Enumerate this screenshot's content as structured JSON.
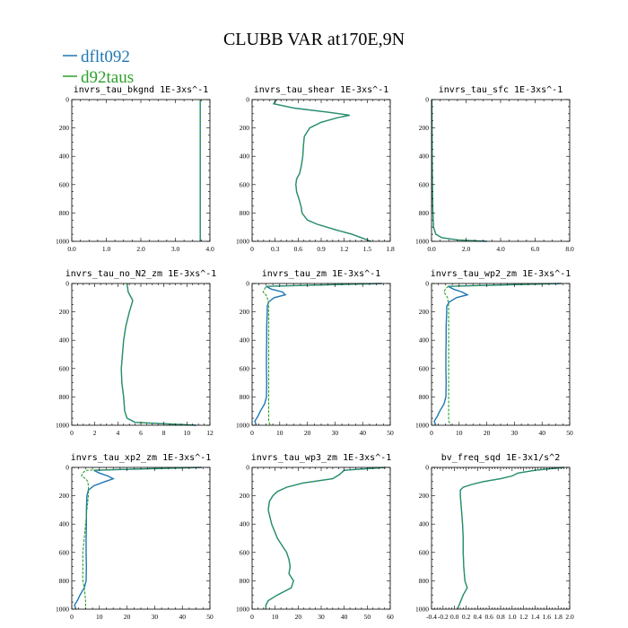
{
  "figure": {
    "title": "CLUBB VAR at170E,9N",
    "legend": [
      {
        "label": "dflt092",
        "color": "#1f77b4"
      },
      {
        "label": "d92taus",
        "color": "#2ca02c"
      }
    ]
  },
  "chart_data": [
    {
      "type": "line",
      "title": "invrs_tau_bkgnd   1E-3xs^-1",
      "xlim": [
        0,
        4
      ],
      "ylim": [
        1000,
        0
      ],
      "xticks": [
        "0.0",
        "1.0",
        "2.0",
        "3.0",
        "4.0"
      ],
      "xtick_values": [
        0,
        1,
        2,
        3,
        4
      ],
      "yticks": [
        "0",
        "200",
        "400",
        "600",
        "800",
        "1000"
      ],
      "ytick_values": [
        0,
        200,
        400,
        600,
        800,
        1000
      ],
      "series": [
        {
          "name": "dflt092",
          "y": [
            0,
            1000
          ],
          "x": [
            3.72,
            3.72
          ]
        },
        {
          "name": "d92taus",
          "y": [
            0,
            1000
          ],
          "x": [
            3.72,
            3.72
          ]
        }
      ]
    },
    {
      "type": "line",
      "title": "invrs_tau_shear   1E-3xs^-1",
      "xlim": [
        0,
        1.8
      ],
      "ylim": [
        1000,
        0
      ],
      "xticks": [
        "0",
        "0.3",
        "0.6",
        "0.9",
        "1.2",
        "1.5",
        "1.8"
      ],
      "xtick_values": [
        0,
        0.3,
        0.6,
        0.9,
        1.2,
        1.5,
        1.8
      ],
      "yticks": [
        "0",
        "200",
        "400",
        "600",
        "800",
        "1000"
      ],
      "ytick_values": [
        0,
        200,
        400,
        600,
        800,
        1000
      ],
      "series": [
        {
          "name": "dflt092",
          "y": [
            0,
            30,
            60,
            90,
            110,
            130,
            160,
            200,
            260,
            320,
            400,
            470,
            520,
            560,
            600,
            650,
            700,
            760,
            800,
            850,
            880,
            920,
            950,
            980,
            1000
          ],
          "x": [
            0.32,
            0.28,
            0.55,
            1.0,
            1.27,
            1.1,
            0.9,
            0.75,
            0.68,
            0.67,
            0.66,
            0.64,
            0.62,
            0.58,
            0.57,
            0.58,
            0.61,
            0.64,
            0.65,
            0.72,
            0.85,
            1.1,
            1.3,
            1.45,
            1.55
          ]
        },
        {
          "name": "d92taus",
          "y": [
            0,
            30,
            60,
            90,
            110,
            130,
            160,
            200,
            260,
            320,
            400,
            470,
            520,
            560,
            600,
            650,
            700,
            760,
            800,
            850,
            880,
            920,
            950,
            980,
            1000
          ],
          "x": [
            0.32,
            0.28,
            0.55,
            1.0,
            1.27,
            1.1,
            0.9,
            0.75,
            0.68,
            0.67,
            0.66,
            0.64,
            0.62,
            0.58,
            0.57,
            0.58,
            0.61,
            0.64,
            0.65,
            0.72,
            0.85,
            1.1,
            1.3,
            1.45,
            1.55
          ]
        }
      ]
    },
    {
      "type": "line",
      "title": "invrs_tau_sfc   1E-3xs^-1",
      "xlim": [
        0,
        8
      ],
      "ylim": [
        1000,
        0
      ],
      "xticks": [
        "0.0",
        "2.0",
        "4.0",
        "6.0",
        "8.0"
      ],
      "xtick_values": [
        0,
        2,
        4,
        6,
        8
      ],
      "yticks": [
        "0",
        "200",
        "400",
        "600",
        "800",
        "1000"
      ],
      "ytick_values": [
        0,
        200,
        400,
        600,
        800,
        1000
      ],
      "series": [
        {
          "name": "dflt092",
          "y": [
            0,
            300,
            600,
            800,
            900,
            950,
            975,
            990,
            1000
          ],
          "x": [
            0.02,
            0.03,
            0.05,
            0.08,
            0.12,
            0.25,
            0.6,
            1.5,
            3.2
          ]
        },
        {
          "name": "d92taus",
          "y": [
            0,
            300,
            600,
            800,
            900,
            950,
            975,
            990,
            1000
          ],
          "x": [
            0.02,
            0.03,
            0.05,
            0.08,
            0.12,
            0.25,
            0.6,
            1.5,
            3.2
          ]
        }
      ]
    },
    {
      "type": "line",
      "title": "invrs_tau_no_N2_zm   1E-3xs^-1",
      "xlim": [
        0,
        12
      ],
      "ylim": [
        1000,
        0
      ],
      "xticks": [
        "0",
        "2",
        "4",
        "6",
        "8",
        "10",
        "12"
      ],
      "xtick_values": [
        0,
        2,
        4,
        6,
        8,
        10,
        12
      ],
      "yticks": [
        "0",
        "200",
        "400",
        "600",
        "800",
        "1000"
      ],
      "ytick_values": [
        0,
        200,
        400,
        600,
        800,
        1000
      ],
      "series": [
        {
          "name": "dflt092",
          "y": [
            0,
            60,
            120,
            200,
            300,
            400,
            500,
            600,
            700,
            800,
            900,
            950,
            980,
            1000
          ],
          "x": [
            4.8,
            4.9,
            5.3,
            5.0,
            4.7,
            4.5,
            4.4,
            4.3,
            4.35,
            4.5,
            4.6,
            4.8,
            5.5,
            10.8
          ]
        },
        {
          "name": "d92taus",
          "y": [
            0,
            60,
            120,
            200,
            300,
            400,
            500,
            600,
            700,
            800,
            900,
            950,
            980,
            1000
          ],
          "x": [
            4.8,
            4.9,
            5.3,
            5.0,
            4.7,
            4.5,
            4.4,
            4.3,
            4.35,
            4.5,
            4.6,
            4.8,
            5.5,
            10.8
          ]
        }
      ]
    },
    {
      "type": "line",
      "title": "invrs_tau_zm   1E-3xs^-1",
      "xlim": [
        0,
        50
      ],
      "ylim": [
        1000,
        0
      ],
      "xticks": [
        "0",
        "10",
        "20",
        "30",
        "40",
        "50"
      ],
      "xtick_values": [
        0,
        10,
        20,
        30,
        40,
        50
      ],
      "yticks": [
        "0",
        "200",
        "400",
        "600",
        "800",
        "1000"
      ],
      "ytick_values": [
        0,
        200,
        400,
        600,
        800,
        1000
      ],
      "series": [
        {
          "name": "dflt092",
          "y": [
            0,
            20,
            40,
            60,
            80,
            100,
            130,
            160,
            200,
            300,
            400,
            500,
            600,
            700,
            800,
            850,
            900,
            940,
            970,
            1000
          ],
          "x": [
            47,
            5,
            7,
            11,
            12,
            8,
            6,
            5.5,
            5.5,
            5.3,
            5.3,
            5.2,
            5.2,
            5.3,
            5.2,
            4.5,
            3,
            2,
            1,
            1.5
          ]
        },
        {
          "name": "d92taus",
          "y": [
            0,
            20,
            40,
            60,
            80,
            100,
            130,
            160,
            200,
            300,
            400,
            500,
            600,
            700,
            800,
            850,
            900,
            940,
            970,
            1000
          ],
          "x": [
            47,
            5,
            4.5,
            4,
            5,
            5.5,
            5.8,
            6,
            6,
            6,
            6,
            6,
            6,
            6,
            6,
            6,
            6,
            6,
            6,
            6.5
          ]
        }
      ]
    },
    {
      "type": "line",
      "title": "invrs_tau_wp2_zm   1E-3xs^-1",
      "xlim": [
        0,
        50
      ],
      "ylim": [
        1000,
        0
      ],
      "xticks": [
        "0",
        "10",
        "20",
        "30",
        "40",
        "50"
      ],
      "xtick_values": [
        0,
        10,
        20,
        30,
        40,
        50
      ],
      "yticks": [
        "0",
        "200",
        "400",
        "600",
        "800",
        "1000"
      ],
      "ytick_values": [
        0,
        200,
        400,
        600,
        800,
        1000
      ],
      "series": [
        {
          "name": "dflt092",
          "y": [
            0,
            20,
            40,
            60,
            80,
            100,
            130,
            160,
            200,
            300,
            400,
            500,
            600,
            700,
            800,
            850,
            900,
            940,
            970,
            1000
          ],
          "x": [
            47,
            6,
            8,
            11,
            13,
            9,
            6.5,
            5.5,
            5.5,
            5.3,
            5.3,
            5.2,
            5.2,
            5.3,
            5.2,
            4.5,
            3,
            2,
            1,
            1.5
          ]
        },
        {
          "name": "d92taus",
          "y": [
            0,
            20,
            40,
            60,
            80,
            100,
            130,
            160,
            200,
            300,
            400,
            500,
            600,
            700,
            800,
            850,
            900,
            940,
            970,
            1000
          ],
          "x": [
            47,
            6,
            5,
            4.5,
            5.2,
            5.8,
            6,
            6.2,
            6.2,
            6.2,
            6.2,
            6.2,
            6.2,
            6.2,
            6.2,
            6.2,
            6.2,
            6.2,
            6.2,
            7
          ]
        }
      ]
    },
    {
      "type": "line",
      "title": "invrs_tau_xp2_zm   1E-3xs^-1",
      "xlim": [
        0,
        50
      ],
      "ylim": [
        1000,
        0
      ],
      "xticks": [
        "0",
        "10",
        "20",
        "30",
        "40",
        "50"
      ],
      "xtick_values": [
        0,
        10,
        20,
        30,
        40,
        50
      ],
      "yticks": [
        "0",
        "200",
        "400",
        "600",
        "800",
        "1000"
      ],
      "ytick_values": [
        0,
        200,
        400,
        600,
        800,
        1000
      ],
      "series": [
        {
          "name": "dflt092",
          "y": [
            0,
            20,
            40,
            60,
            80,
            100,
            130,
            160,
            200,
            300,
            400,
            500,
            600,
            700,
            800,
            850,
            900,
            940,
            970,
            1000
          ],
          "x": [
            47,
            8,
            10,
            13,
            15,
            12,
            8,
            6,
            5.5,
            5.3,
            5.3,
            5.2,
            5.2,
            5.3,
            5.2,
            4.5,
            3,
            2,
            1,
            1.5
          ]
        },
        {
          "name": "d92taus",
          "y": [
            0,
            20,
            40,
            60,
            80,
            100,
            130,
            160,
            200,
            300,
            400,
            500,
            600,
            700,
            800,
            850,
            900,
            940,
            970,
            1000
          ],
          "x": [
            47,
            5,
            4,
            3.5,
            5,
            5.8,
            6,
            6,
            6,
            5.5,
            5,
            4.5,
            4,
            4,
            4,
            4.5,
            4.8,
            5,
            5,
            5
          ]
        }
      ]
    },
    {
      "type": "line",
      "title": "invrs_tau_wp3_zm   1E-3xs^-1",
      "xlim": [
        0,
        60
      ],
      "ylim": [
        1000,
        0
      ],
      "xticks": [
        "0",
        "10",
        "20",
        "30",
        "40",
        "50",
        "60"
      ],
      "xtick_values": [
        0,
        10,
        20,
        30,
        40,
        50,
        60
      ],
      "yticks": [
        "0",
        "200",
        "400",
        "600",
        "800",
        "1000"
      ],
      "ytick_values": [
        0,
        200,
        400,
        600,
        800,
        1000
      ],
      "series": [
        {
          "name": "dflt092",
          "y": [
            0,
            20,
            50,
            80,
            110,
            140,
            170,
            200,
            240,
            300,
            400,
            500,
            600,
            650,
            700,
            750,
            800,
            850,
            900,
            940,
            970,
            1000
          ],
          "x": [
            58,
            40,
            38,
            35,
            22,
            15,
            11,
            9,
            7.5,
            7,
            8.5,
            11,
            15,
            16,
            16.5,
            16,
            18,
            17,
            11,
            7,
            6,
            6
          ]
        },
        {
          "name": "d92taus",
          "y": [
            0,
            20,
            50,
            80,
            110,
            140,
            170,
            200,
            240,
            300,
            400,
            500,
            600,
            650,
            700,
            750,
            800,
            850,
            900,
            940,
            970,
            1000
          ],
          "x": [
            58,
            40,
            38,
            35,
            22,
            15,
            11,
            9,
            7.5,
            7,
            8.5,
            11,
            15,
            16,
            16.5,
            16,
            18,
            17,
            11,
            7,
            6,
            6
          ]
        }
      ]
    },
    {
      "type": "line",
      "title": "bv_freq_sqd   1E-3x1/s^2",
      "xlim": [
        -0.4,
        2.0
      ],
      "ylim": [
        1000,
        0
      ],
      "xticks": [
        "-0.4",
        "-0.2",
        "0.0",
        "0.2",
        "0.4",
        "0.6",
        "0.8",
        "1.0",
        "1.2",
        "1.4",
        "1.6",
        "1.8",
        "2.0"
      ],
      "xtick_values": [
        -0.4,
        -0.2,
        0,
        0.2,
        0.4,
        0.6,
        0.8,
        1.0,
        1.2,
        1.4,
        1.6,
        1.8,
        2.0
      ],
      "yticks": [
        "0",
        "200",
        "400",
        "600",
        "800",
        "1000"
      ],
      "ytick_values": [
        0,
        200,
        400,
        600,
        800,
        1000
      ],
      "series": [
        {
          "name": "dflt092",
          "y": [
            0,
            20,
            40,
            60,
            80,
            100,
            120,
            140,
            160,
            200,
            300,
            400,
            500,
            600,
            700,
            800,
            850,
            900,
            950,
            1000
          ],
          "x": [
            1.9,
            1.4,
            1.1,
            1.0,
            0.8,
            0.5,
            0.3,
            0.15,
            0.1,
            0.1,
            0.12,
            0.14,
            0.15,
            0.15,
            0.16,
            0.18,
            0.22,
            0.15,
            0.1,
            0.05
          ]
        },
        {
          "name": "d92taus",
          "y": [
            0,
            20,
            40,
            60,
            80,
            100,
            120,
            140,
            160,
            200,
            300,
            400,
            500,
            600,
            700,
            800,
            850,
            900,
            950,
            1000
          ],
          "x": [
            1.9,
            1.4,
            1.1,
            1.0,
            0.8,
            0.5,
            0.3,
            0.15,
            0.1,
            0.1,
            0.12,
            0.14,
            0.15,
            0.15,
            0.16,
            0.18,
            0.22,
            0.15,
            0.1,
            0.05
          ]
        }
      ]
    }
  ]
}
